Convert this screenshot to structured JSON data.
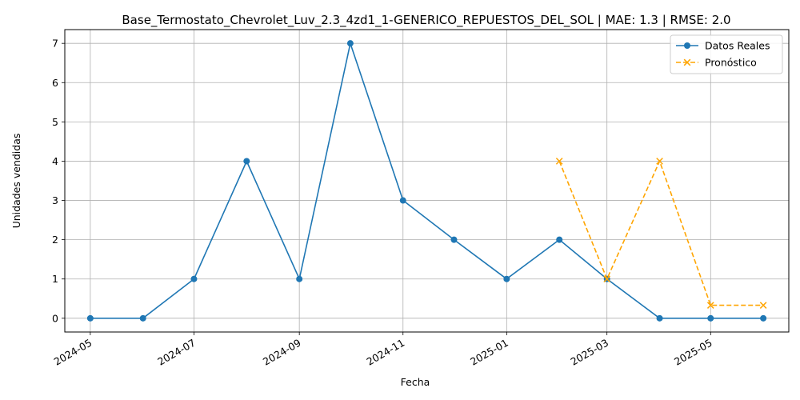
{
  "chart_data": {
    "type": "line",
    "title": "Base_Termostato_Chevrolet_Luv_2.3_4zd1_1-GENERICO_REPUESTOS_DEL_SOL | MAE: 1.3 | RMSE: 2.0",
    "xlabel": "Fecha",
    "ylabel": "Unidades vendidas",
    "x_ticks": [
      "2024-05",
      "2024-07",
      "2024-09",
      "2024-11",
      "2025-01",
      "2025-03",
      "2025-05"
    ],
    "y_ticks": [
      0,
      1,
      2,
      3,
      4,
      5,
      6,
      7
    ],
    "ylim": [
      -0.35,
      7.35
    ],
    "xlim": [
      "2024-04-16",
      "2025-06-16"
    ],
    "grid": true,
    "legend_position": "top-right",
    "series": [
      {
        "name": "Datos Reales",
        "color": "#1f77b4",
        "style": "solid",
        "marker": "circle",
        "x": [
          "2024-05-01",
          "2024-06-01",
          "2024-07-01",
          "2024-08-01",
          "2024-09-01",
          "2024-10-01",
          "2024-11-01",
          "2024-12-01",
          "2025-01-01",
          "2025-02-01",
          "2025-03-01",
          "2025-04-01",
          "2025-05-01",
          "2025-06-01"
        ],
        "values": [
          0,
          0,
          1,
          4,
          1,
          7,
          3,
          2,
          1,
          2,
          1,
          0,
          0,
          0
        ]
      },
      {
        "name": "Pronóstico",
        "color": "#ffa500",
        "style": "dashed",
        "marker": "x",
        "x": [
          "2025-02-01",
          "2025-03-01",
          "2025-04-01",
          "2025-05-01",
          "2025-06-01"
        ],
        "values": [
          4,
          1,
          4,
          0.33,
          0.33
        ]
      }
    ]
  }
}
